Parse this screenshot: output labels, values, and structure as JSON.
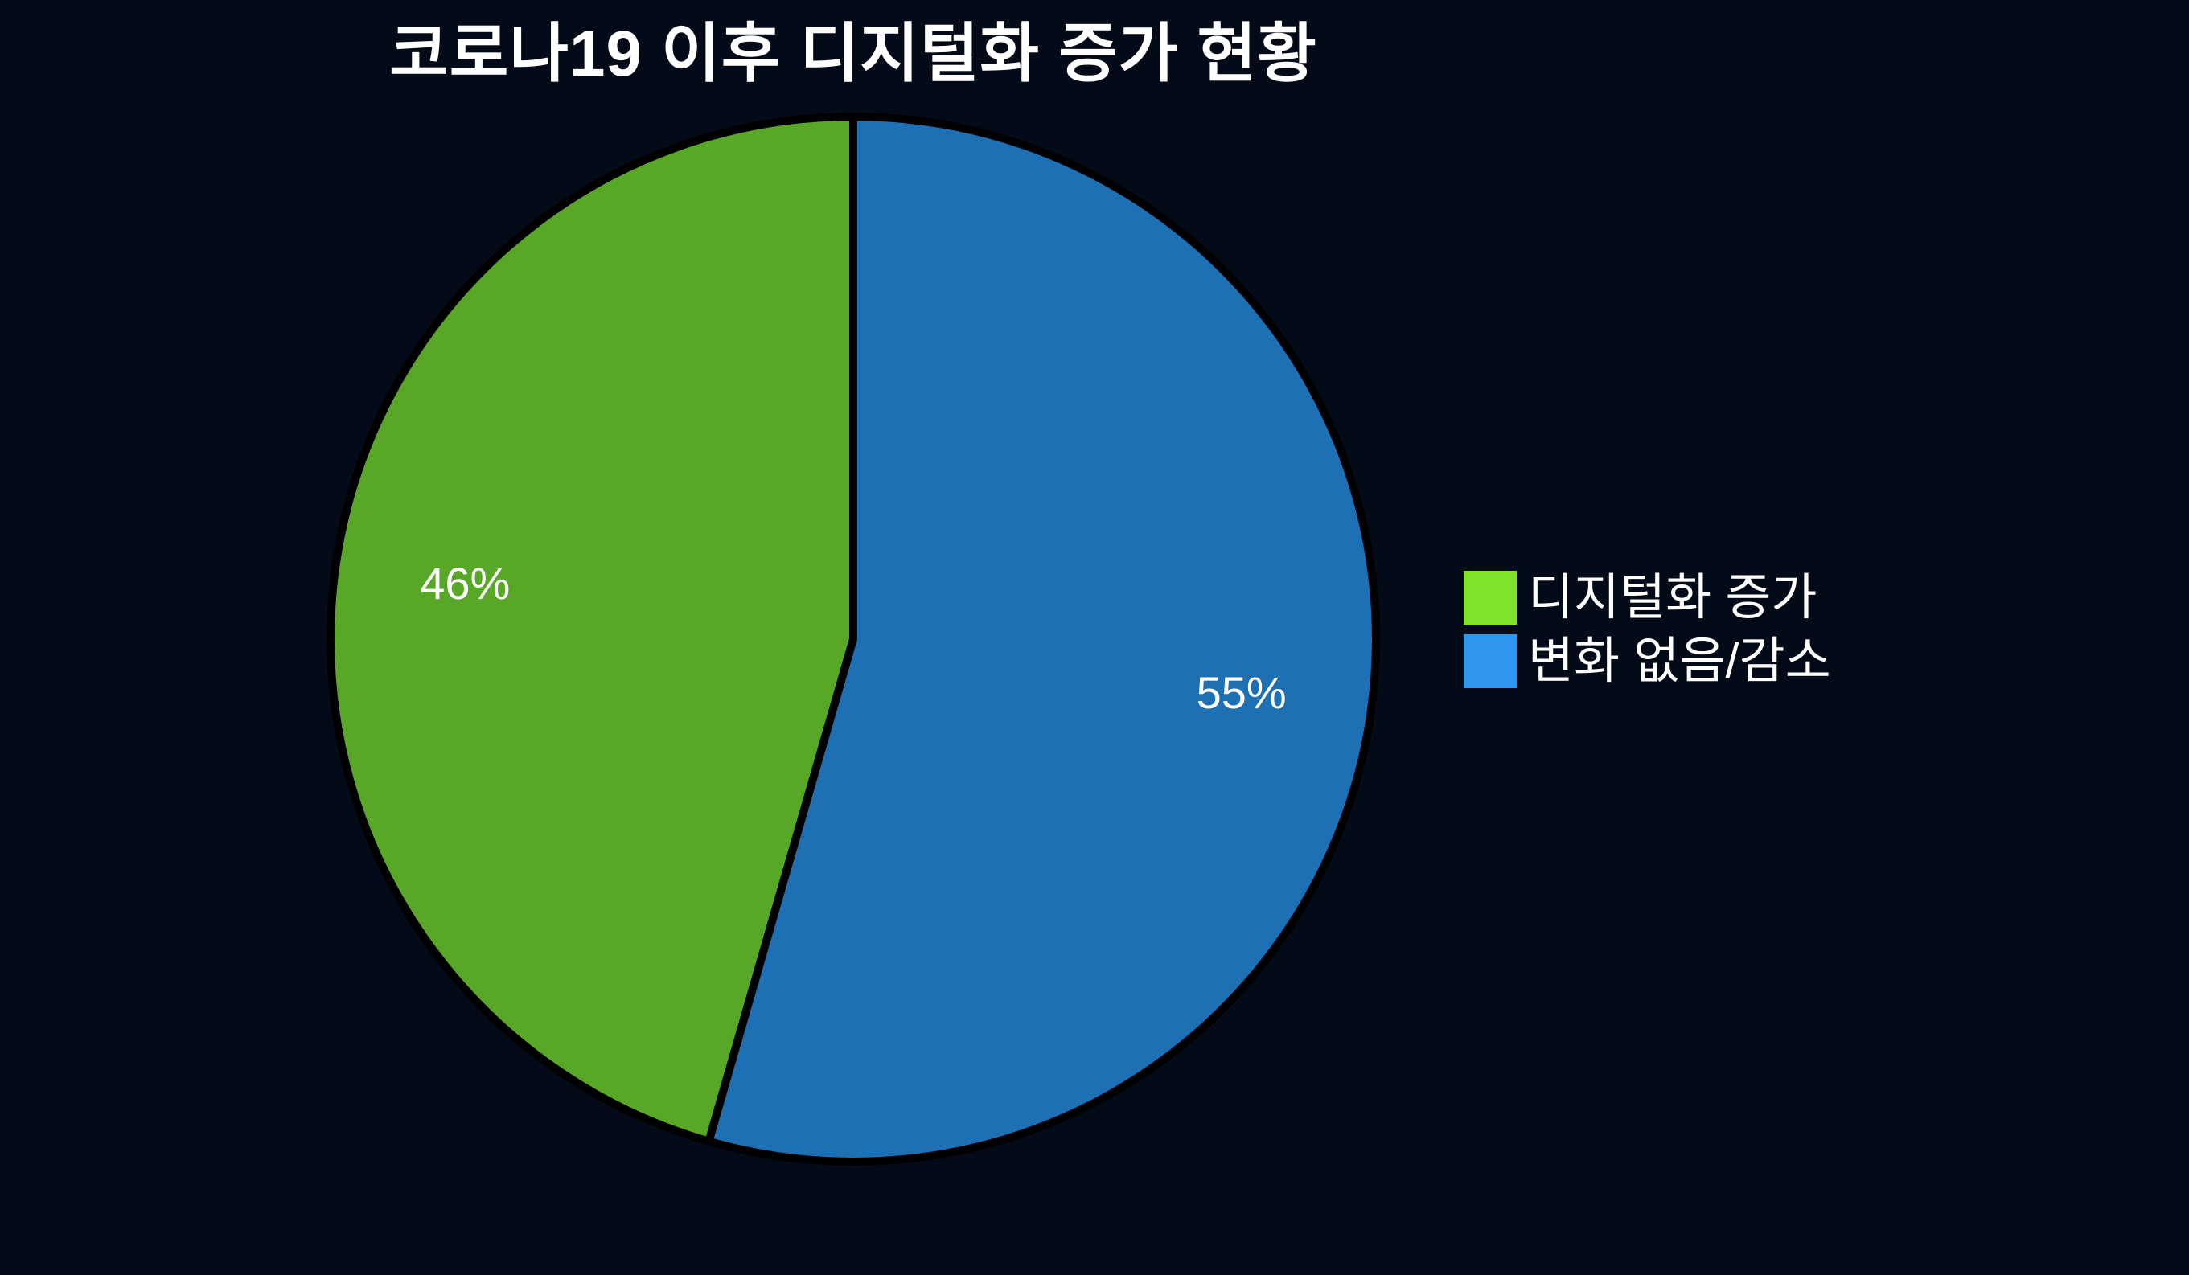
{
  "title": "코로나19 이후 디지털화 증가 현황",
  "chart_data": {
    "type": "pie",
    "title": "코로나19 이후 디지털화 증가 현황",
    "categories": [
      "디지털화 증가",
      "변화 없음/감소"
    ],
    "values": [
      46,
      55
    ],
    "value_labels": [
      "46%",
      "55%"
    ],
    "slice_colors": [
      "#58a727",
      "#1e70b4"
    ],
    "legend_colors": [
      "#7fe32a",
      "#2d96ef"
    ],
    "start_angle_deg": 90,
    "direction": "counterclockwise",
    "legend_position": "right",
    "background_color": "#040b18",
    "edge_color": "#000000",
    "label_color": "#ffffff"
  }
}
